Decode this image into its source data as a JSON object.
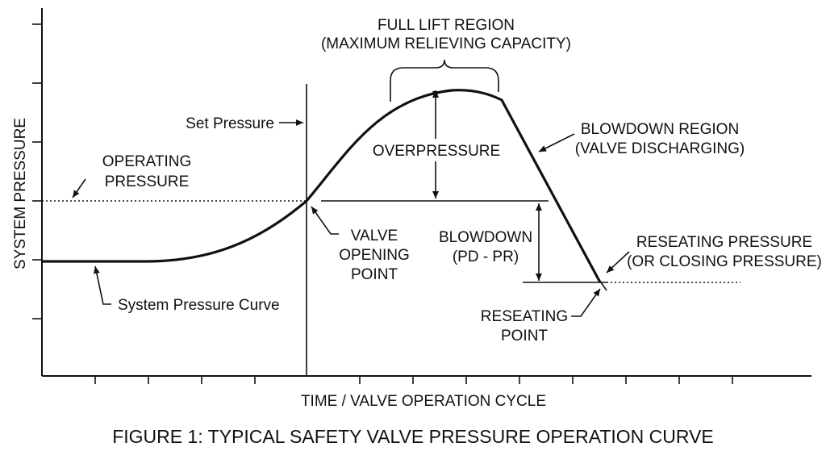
{
  "axes": {
    "y_label": "SYSTEM PRESSURE",
    "x_label": "TIME / VALVE OPERATION CYCLE"
  },
  "caption": "FIGURE 1: TYPICAL SAFETY VALVE PRESSURE OPERATION CURVE",
  "annotations": {
    "full_lift_line1": "FULL LIFT REGION",
    "full_lift_line2": "(MAXIMUM RELIEVING CAPACITY)",
    "set_pressure": "Set Pressure",
    "operating_line1": "OPERATING",
    "operating_line2": "PRESSURE",
    "overpressure": "OVERPRESSURE",
    "blowdown_region_line1": "BLOWDOWN REGION",
    "blowdown_region_line2": "(VALVE DISCHARGING)",
    "valve_opening_line1": "VALVE",
    "valve_opening_line2": "OPENING",
    "valve_opening_line3": "POINT",
    "blowdown_line1": "BLOWDOWN",
    "blowdown_line2": "(PD - PR)",
    "reseating_pressure_line1": "RESEATING PRESSURE",
    "reseating_pressure_line2": "(OR CLOSING PRESSURE)",
    "system_curve": "System Pressure Curve",
    "reseating_point_line1": "RESEATING",
    "reseating_point_line2": "POINT"
  }
}
